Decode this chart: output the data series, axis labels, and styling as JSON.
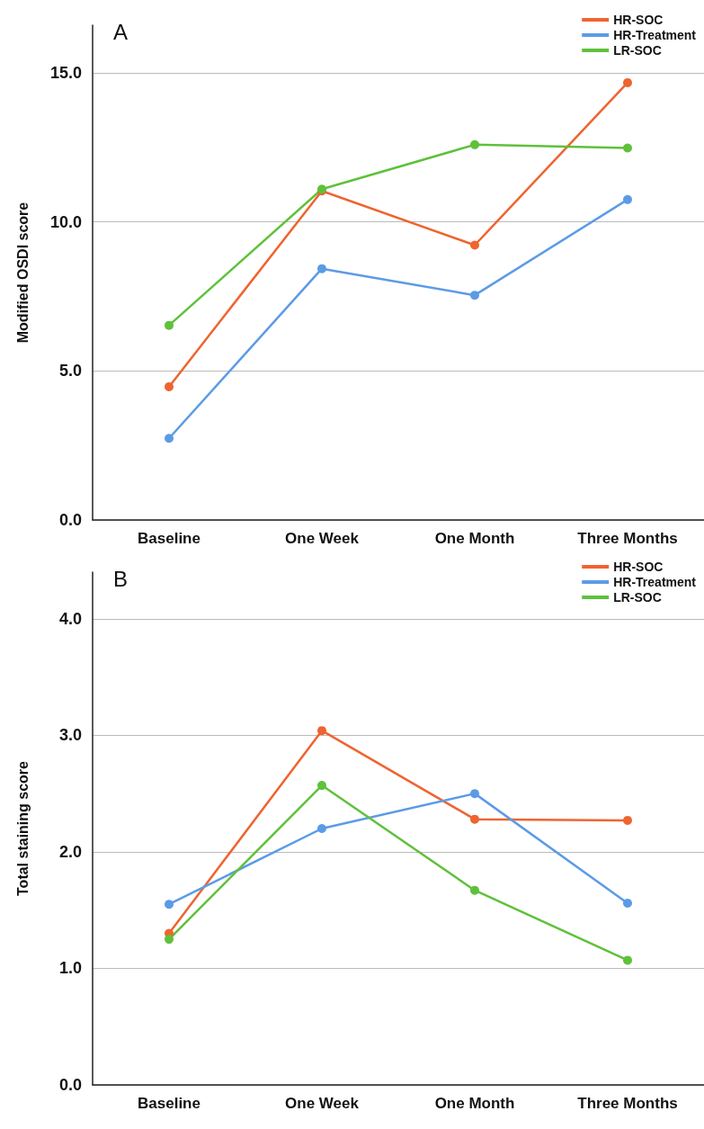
{
  "chart_data": [
    {
      "type": "line",
      "title": "A",
      "ylabel": "Modified OSDI score",
      "categories": [
        "Baseline",
        "One Week",
        "One Month",
        "Three Months"
      ],
      "series": [
        {
          "name": "HR-SOC",
          "color": "#ef6430",
          "values": [
            4.47,
            11.04,
            9.22,
            14.67
          ]
        },
        {
          "name": "HR-Treatment",
          "color": "#5b9be6",
          "values": [
            2.74,
            8.43,
            7.54,
            10.75
          ]
        },
        {
          "name": "LR-SOC",
          "color": "#5fc13b",
          "values": [
            6.53,
            11.1,
            12.59,
            12.48
          ]
        }
      ],
      "ylim": [
        0,
        16.6
      ],
      "yticks": [
        {
          "value": 0,
          "label": "0.0"
        },
        {
          "value": 5,
          "label": "5.0"
        },
        {
          "value": 10,
          "label": "10.0"
        },
        {
          "value": 15,
          "label": "15.0"
        }
      ],
      "grid": "y",
      "legend": "top right",
      "marker": "circle",
      "line_style": "solid"
    },
    {
      "type": "line",
      "title": "B",
      "ylabel": "Total staining score",
      "categories": [
        "Baseline",
        "One Week",
        "One Month",
        "Three Months"
      ],
      "series": [
        {
          "name": "HR-SOC",
          "color": "#ef6430",
          "values": [
            1.3,
            3.04,
            2.28,
            2.27
          ]
        },
        {
          "name": "HR-Treatment",
          "color": "#5b9be6",
          "values": [
            1.55,
            2.2,
            2.5,
            1.56
          ]
        },
        {
          "name": "LR-SOC",
          "color": "#5fc13b",
          "values": [
            1.25,
            2.57,
            1.67,
            1.07
          ]
        }
      ],
      "ylim": [
        0,
        4.4
      ],
      "yticks": [
        {
          "value": 0,
          "label": "0.0"
        },
        {
          "value": 1,
          "label": "1.0"
        },
        {
          "value": 2,
          "label": "2.0"
        },
        {
          "value": 3,
          "label": "3.0"
        },
        {
          "value": 4,
          "label": "4.0"
        }
      ],
      "grid": "y",
      "legend": "top right",
      "marker": "circle",
      "line_style": "solid"
    }
  ]
}
